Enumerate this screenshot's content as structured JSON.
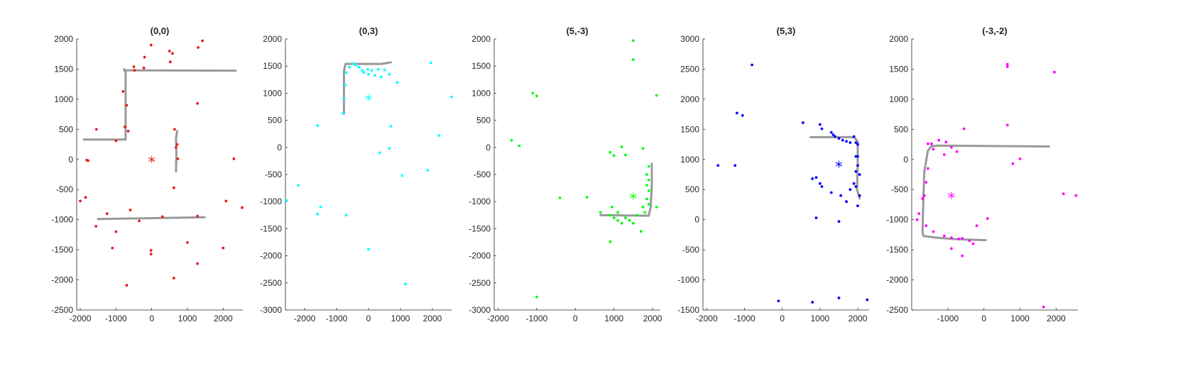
{
  "chart_data": [
    {
      "type": "scatter",
      "title": "(0,0)",
      "xlim": [
        -2100,
        2550
      ],
      "ylim": [
        -2500,
        2000
      ],
      "xticks": [
        -2000,
        -1000,
        0,
        1000,
        2000
      ],
      "xtick_labels": [
        "-2000",
        "-1000",
        "0",
        "1000",
        "2000"
      ],
      "yticks": [
        -2500,
        -2000,
        -1500,
        -1000,
        -500,
        0,
        500,
        1000,
        1500,
        2000
      ],
      "ytick_labels": [
        "-2500",
        "-2000",
        "-1500",
        "-1000",
        "-500",
        "0",
        "500",
        "1000",
        "1500",
        "2000"
      ],
      "color": "#e41a1c",
      "wall_color": "#999999",
      "star": [
        0,
        0
      ],
      "walls": [
        [
          [
            -1900,
            330
          ],
          [
            -730,
            330
          ],
          [
            -730,
            1450
          ],
          [
            -770,
            1480
          ],
          [
            -770,
            1500
          ]
        ],
        [
          [
            -770,
            1480
          ],
          [
            2350,
            1475
          ]
        ],
        [
          [
            710,
            470
          ],
          [
            680,
            350
          ],
          [
            690,
            100
          ],
          [
            680,
            -200
          ]
        ],
        [
          [
            -1500,
            -990
          ],
          [
            1480,
            -960
          ]
        ]
      ],
      "points": [
        [
          -1850,
          -630
        ],
        [
          -2000,
          -690
        ],
        [
          -1780,
          -20
        ],
        [
          -1820,
          -10
        ],
        [
          -1550,
          500
        ],
        [
          -1000,
          310
        ],
        [
          -800,
          1130
        ],
        [
          -700,
          900
        ],
        [
          -750,
          540
        ],
        [
          -660,
          470
        ],
        [
          -500,
          1540
        ],
        [
          -480,
          1480
        ],
        [
          -220,
          1520
        ],
        [
          -20,
          1900
        ],
        [
          -200,
          1700
        ],
        [
          500,
          1800
        ],
        [
          580,
          1760
        ],
        [
          520,
          1620
        ],
        [
          1300,
          1860
        ],
        [
          1420,
          1970
        ],
        [
          1280,
          930
        ],
        [
          640,
          500
        ],
        [
          710,
          250
        ],
        [
          680,
          200
        ],
        [
          730,
          10
        ],
        [
          2300,
          10
        ],
        [
          620,
          -470
        ],
        [
          -600,
          -840
        ],
        [
          -1250,
          -900
        ],
        [
          -1000,
          -1200
        ],
        [
          -1560,
          -1110
        ],
        [
          -1100,
          -1470
        ],
        [
          -350,
          -1020
        ],
        [
          300,
          -950
        ],
        [
          -20,
          -1510
        ],
        [
          -20,
          -1570
        ],
        [
          620,
          -1970
        ],
        [
          1000,
          -1380
        ],
        [
          1280,
          -940
        ],
        [
          1280,
          -1730
        ],
        [
          2000,
          -1470
        ],
        [
          2080,
          -690
        ],
        [
          2530,
          -800
        ],
        [
          -700,
          -2090
        ]
      ]
    },
    {
      "type": "scatter",
      "title": "(0,3)",
      "xlim": [
        -2600,
        2600
      ],
      "ylim": [
        -3000,
        2000
      ],
      "xticks": [
        -2000,
        -1000,
        0,
        1000,
        2000
      ],
      "xtick_labels": [
        "-2000",
        "-1000",
        "0",
        "1000",
        "2000"
      ],
      "yticks": [
        -3000,
        -2500,
        -2000,
        -1500,
        -1000,
        -500,
        0,
        500,
        1000,
        1500,
        2000
      ],
      "ytick_labels": [
        "-3000",
        "-2500",
        "-2000",
        "-1500",
        "-1000",
        "-500",
        "0",
        "500",
        "1000",
        "1500",
        "2000"
      ],
      "color": "#00ffff",
      "wall_color": "#999999",
      "star": [
        0,
        920
      ],
      "walls": [
        [
          [
            -770,
            620
          ],
          [
            -770,
            1400
          ],
          [
            -720,
            1540
          ],
          [
            -400,
            1540
          ],
          [
            400,
            1540
          ],
          [
            700,
            1570
          ]
        ]
      ],
      "points": [
        [
          -800,
          630
        ],
        [
          -760,
          900
        ],
        [
          -730,
          1150
        ],
        [
          -700,
          1380
        ],
        [
          -600,
          1480
        ],
        [
          -500,
          1550
        ],
        [
          -400,
          1520
        ],
        [
          -300,
          1480
        ],
        [
          -200,
          1420
        ],
        [
          -150,
          1380
        ],
        [
          -20,
          1440
        ],
        [
          0,
          1350
        ],
        [
          100,
          1420
        ],
        [
          200,
          1330
        ],
        [
          300,
          1440
        ],
        [
          400,
          1300
        ],
        [
          500,
          1430
        ],
        [
          650,
          1350
        ],
        [
          900,
          1200
        ],
        [
          1950,
          1560
        ],
        [
          2600,
          930
        ],
        [
          -1600,
          400
        ],
        [
          -2200,
          -700
        ],
        [
          -2560,
          -980
        ],
        [
          -1600,
          -1230
        ],
        [
          -1500,
          -1100
        ],
        [
          -700,
          -1250
        ],
        [
          350,
          -100
        ],
        [
          650,
          -20
        ],
        [
          700,
          390
        ],
        [
          1050,
          -520
        ],
        [
          1850,
          -420
        ],
        [
          2200,
          220
        ],
        [
          0,
          -1880
        ],
        [
          1150,
          -2520
        ]
      ]
    },
    {
      "type": "scatter",
      "title": "(5,-3)",
      "xlim": [
        -2100,
        2200
      ],
      "ylim": [
        -3000,
        2000
      ],
      "xticks": [
        -2000,
        -1000,
        0,
        1000,
        2000
      ],
      "xtick_labels": [
        "-2000",
        "-1000",
        "0",
        "1000",
        "2000"
      ],
      "yticks": [
        -3000,
        -2500,
        -2000,
        -1500,
        -1000,
        -500,
        0,
        500,
        1000,
        1500,
        2000
      ],
      "ytick_labels": [
        "-3000",
        "-2500",
        "-2000",
        "-1500",
        "-1000",
        "-500",
        "0",
        "500",
        "1000",
        "1500",
        "2000"
      ],
      "color": "#00ff00",
      "wall_color": "#999999",
      "star": [
        1500,
        -900
      ],
      "walls": [
        [
          [
            650,
            -1250
          ],
          [
            1900,
            -1260
          ],
          [
            1950,
            -1100
          ],
          [
            1980,
            -700
          ],
          [
            1980,
            -300
          ]
        ]
      ],
      "points": [
        [
          1500,
          1970
        ],
        [
          1500,
          1620
        ],
        [
          2100,
          960
        ],
        [
          -1100,
          1000
        ],
        [
          -1000,
          950
        ],
        [
          -1650,
          130
        ],
        [
          -1450,
          30
        ],
        [
          900,
          -90
        ],
        [
          1000,
          -150
        ],
        [
          1200,
          10
        ],
        [
          1300,
          -140
        ],
        [
          1750,
          -20
        ],
        [
          1900,
          -350
        ],
        [
          1850,
          -500
        ],
        [
          1900,
          -600
        ],
        [
          1850,
          -700
        ],
        [
          1900,
          -800
        ],
        [
          1850,
          -950
        ],
        [
          1900,
          -1050
        ],
        [
          2100,
          -1100
        ],
        [
          -400,
          -930
        ],
        [
          300,
          -920
        ],
        [
          650,
          -1200
        ],
        [
          900,
          -1250
        ],
        [
          1000,
          -1300
        ],
        [
          1100,
          -1350
        ],
        [
          1200,
          -1400
        ],
        [
          1300,
          -1300
        ],
        [
          1400,
          -1350
        ],
        [
          1500,
          -1400
        ],
        [
          1600,
          -1250
        ],
        [
          1700,
          -1550
        ],
        [
          1750,
          -1100
        ],
        [
          1800,
          -1200
        ],
        [
          950,
          -1100
        ],
        [
          1100,
          -1200
        ],
        [
          900,
          -1740
        ],
        [
          -1000,
          -2760
        ]
      ]
    },
    {
      "type": "scatter",
      "title": "(5,3)",
      "xlim": [
        -2100,
        2300
      ],
      "ylim": [
        -1500,
        3000
      ],
      "xticks": [
        -2000,
        -1000,
        0,
        1000,
        2000
      ],
      "xtick_labels": [
        "-2000",
        "-1000",
        "0",
        "1000",
        "2000"
      ],
      "yticks": [
        -1500,
        -1000,
        -500,
        0,
        500,
        1000,
        1500,
        2000,
        2500,
        3000
      ],
      "ytick_labels": [
        "-1500",
        "-1000",
        "-500",
        "0",
        "500",
        "1000",
        "1500",
        "2000",
        "2500",
        "3000"
      ],
      "color": "#0000ff",
      "wall_color": "#999999",
      "star": [
        1500,
        920
      ],
      "walls": [
        [
          [
            750,
            1370
          ],
          [
            1900,
            1370
          ],
          [
            2000,
            1300
          ],
          [
            2000,
            900
          ],
          [
            1980,
            500
          ],
          [
            2050,
            350
          ]
        ]
      ],
      "points": [
        [
          -800,
          2570
        ],
        [
          -1200,
          1770
        ],
        [
          -1050,
          1730
        ],
        [
          -1700,
          900
        ],
        [
          -1250,
          900
        ],
        [
          550,
          1610
        ],
        [
          1000,
          1580
        ],
        [
          1050,
          1510
        ],
        [
          1300,
          1450
        ],
        [
          1350,
          1410
        ],
        [
          1400,
          1380
        ],
        [
          1500,
          1350
        ],
        [
          1600,
          1320
        ],
        [
          1700,
          1300
        ],
        [
          1800,
          1280
        ],
        [
          1900,
          1380
        ],
        [
          1950,
          1280
        ],
        [
          2000,
          1250
        ],
        [
          1950,
          1050
        ],
        [
          2000,
          1050
        ],
        [
          2000,
          900
        ],
        [
          1950,
          800
        ],
        [
          2050,
          750
        ],
        [
          1900,
          600
        ],
        [
          1950,
          550
        ],
        [
          1800,
          500
        ],
        [
          2050,
          400
        ],
        [
          1700,
          300
        ],
        [
          2000,
          230
        ],
        [
          900,
          700
        ],
        [
          800,
          680
        ],
        [
          1000,
          600
        ],
        [
          1050,
          550
        ],
        [
          1300,
          450
        ],
        [
          1550,
          400
        ],
        [
          900,
          30
        ],
        [
          1500,
          -30
        ],
        [
          -100,
          -1350
        ],
        [
          800,
          -1370
        ],
        [
          1500,
          -1300
        ],
        [
          2250,
          -1330
        ]
      ]
    },
    {
      "type": "scatter",
      "title": "(-3,-2)",
      "xlim": [
        -2000,
        2600
      ],
      "ylim": [
        -2500,
        2000
      ],
      "xticks": [
        -1000,
        0,
        1000,
        2000
      ],
      "xtick_labels": [
        "-1000",
        "0",
        "1000",
        "2000"
      ],
      "yticks": [
        -2500,
        -2000,
        -1500,
        -1000,
        -500,
        0,
        500,
        1000,
        1500,
        2000
      ],
      "ytick_labels": [
        "-2500",
        "-2000",
        "-1500",
        "-1000",
        "-500",
        "0",
        "500",
        "1000",
        "1500",
        "2000"
      ],
      "color": "#ff00ff",
      "wall_color": "#999999",
      "star": [
        -900,
        -600
      ],
      "walls": [
        [
          [
            1800,
            215
          ],
          [
            -1250,
            230
          ],
          [
            -1450,
            220
          ],
          [
            -1550,
            150
          ],
          [
            -1650,
            -200
          ],
          [
            -1680,
            -700
          ],
          [
            -1700,
            -1200
          ],
          [
            -1680,
            -1270
          ],
          [
            -1300,
            -1300
          ],
          [
            -900,
            -1320
          ],
          [
            -500,
            -1330
          ],
          [
            50,
            -1340
          ]
        ]
      ],
      "points": [
        [
          650,
          1580
        ],
        [
          650,
          1540
        ],
        [
          1950,
          1450
        ],
        [
          650,
          570
        ],
        [
          -550,
          510
        ],
        [
          -1250,
          320
        ],
        [
          -1050,
          290
        ],
        [
          -1450,
          260
        ],
        [
          -1550,
          260
        ],
        [
          -900,
          200
        ],
        [
          -1400,
          170
        ],
        [
          -1100,
          80
        ],
        [
          -750,
          130
        ],
        [
          1000,
          10
        ],
        [
          800,
          -70
        ],
        [
          -1550,
          -150
        ],
        [
          -1600,
          -380
        ],
        [
          -1650,
          -600
        ],
        [
          -1700,
          -650
        ],
        [
          -1800,
          -900
        ],
        [
          -1850,
          -1000
        ],
        [
          -1600,
          -1100
        ],
        [
          -1400,
          -1200
        ],
        [
          -1100,
          -1270
        ],
        [
          -900,
          -1300
        ],
        [
          -700,
          -1320
        ],
        [
          -600,
          -1310
        ],
        [
          -400,
          -1350
        ],
        [
          -300,
          -1400
        ],
        [
          -200,
          -1100
        ],
        [
          100,
          -980
        ],
        [
          -900,
          -1480
        ],
        [
          -600,
          -1600
        ],
        [
          2200,
          -570
        ],
        [
          2550,
          -600
        ],
        [
          1650,
          -2450
        ]
      ]
    }
  ]
}
